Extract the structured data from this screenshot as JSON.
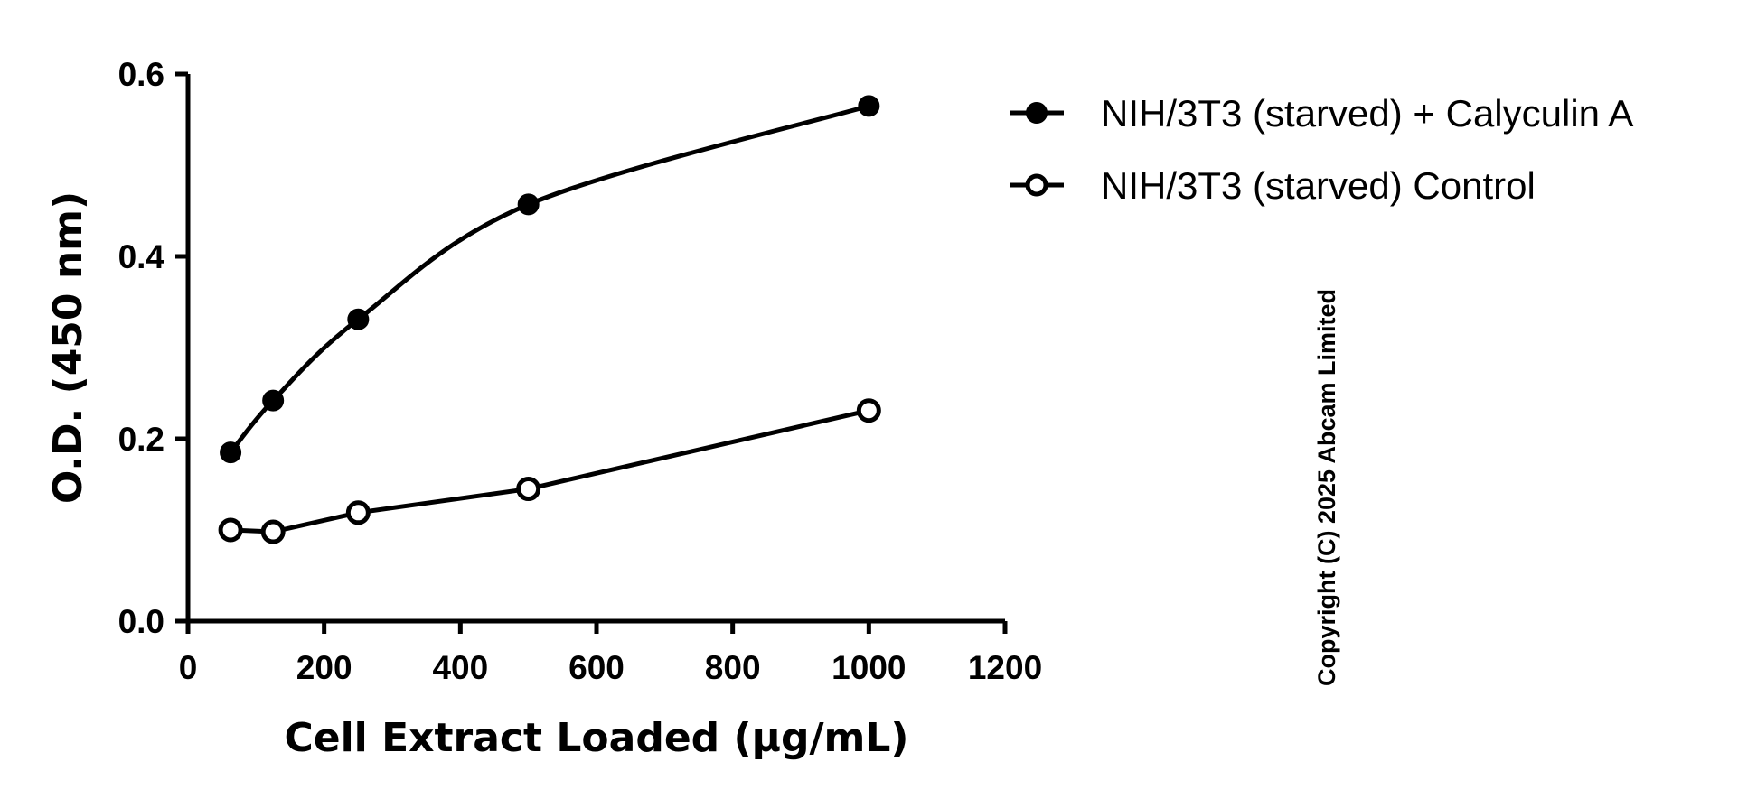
{
  "chart_data": {
    "type": "line",
    "xlabel": "Cell Extract Loaded (μg/mL)",
    "ylabel": "O.D. (450 nm)",
    "xlim": [
      0,
      1200
    ],
    "ylim": [
      0,
      0.6
    ],
    "x_ticks": [
      "0",
      "200",
      "400",
      "600",
      "800",
      "1000",
      "1200"
    ],
    "y_ticks": [
      "0.0",
      "0.2",
      "0.4",
      "0.6"
    ],
    "x_tick_values": [
      0,
      200,
      400,
      600,
      800,
      1000,
      1200
    ],
    "y_tick_values": [
      0,
      0.2,
      0.4,
      0.6
    ],
    "grid": false,
    "legend_position": "top-right",
    "series": [
      {
        "name": "NIH/3T3 (starved) + Calyculin A",
        "marker": "filled-circle",
        "color": "#000000",
        "fit": "smooth",
        "x": [
          62.5,
          125,
          250,
          500,
          1000
        ],
        "values": [
          0.185,
          0.242,
          0.331,
          0.457,
          0.565
        ]
      },
      {
        "name": "NIH/3T3 (starved) Control",
        "marker": "open-circle",
        "color": "#000000",
        "fit": "straight",
        "x": [
          62.5,
          125,
          250,
          500,
          1000
        ],
        "values": [
          0.1,
          0.098,
          0.119,
          0.145,
          0.231
        ]
      }
    ]
  },
  "copyright": "Copyright (C) 2025 Abcam Limited"
}
